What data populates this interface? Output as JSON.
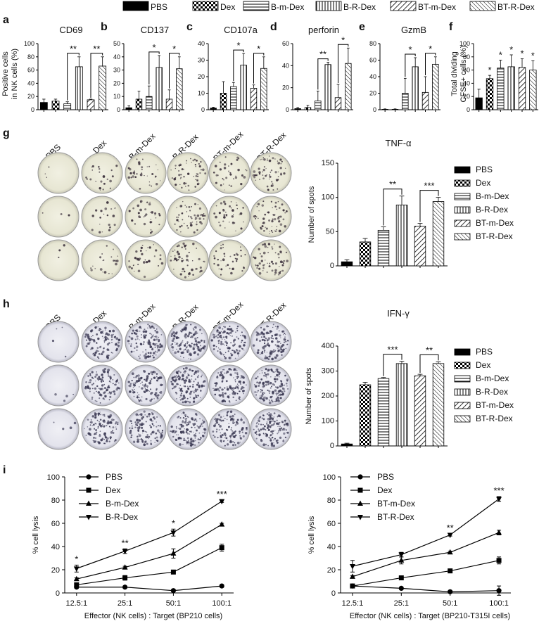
{
  "legend_top": [
    "PBS",
    "Dex",
    "B-m-Dex",
    "B-R-Dex",
    "BT-m-Dex",
    "BT-R-Dex"
  ],
  "panels": {
    "a": {
      "letter": "a",
      "title": "CD69"
    },
    "b": {
      "letter": "b",
      "title": "CD137"
    },
    "c": {
      "letter": "c",
      "title": "CD107a"
    },
    "d": {
      "letter": "d",
      "title": "perforin"
    },
    "e": {
      "letter": "e",
      "title": "GzmB"
    },
    "f": {
      "letter": "f",
      "title": ""
    },
    "g": {
      "letter": "g",
      "title": "TNF-α"
    },
    "h": {
      "letter": "h",
      "title": "IFN-γ"
    },
    "i": {
      "letter": "i"
    }
  },
  "shared_ylabel_ae": [
    "Positive cells",
    "in NK cells (%)"
  ],
  "ylabel_f": [
    "Total dividing",
    "CFSE+ cells (%)"
  ],
  "well_labels": [
    "PBS",
    "Dex",
    "B-m-Dex",
    "B-R-Dex",
    "BT-m-Dex",
    "BT-R-Dex"
  ],
  "colors": {
    "bar_stroke": "#000000",
    "plate_g": "#ecebd9",
    "plate_h": "#ececf2"
  },
  "chart_data": [
    {
      "id": "a",
      "type": "bar",
      "title": "CD69",
      "ylabel": "Positive cells in NK cells (%)",
      "ylim": [
        0,
        100
      ],
      "yticks": [
        0,
        20,
        40,
        60,
        80,
        100
      ],
      "categories": [
        "PBS",
        "Dex",
        "B-m-Dex",
        "B-R-Dex",
        "BT-m-Dex",
        "BT-R-Dex"
      ],
      "values": [
        11,
        13,
        9,
        65,
        15,
        66
      ],
      "errors": [
        5,
        3,
        3,
        15,
        1,
        14
      ],
      "brackets": [
        {
          "from": 2,
          "to": 3,
          "label": "**"
        },
        {
          "from": 4,
          "to": 5,
          "label": "**"
        }
      ]
    },
    {
      "id": "b",
      "type": "bar",
      "title": "CD137",
      "ylabel": "",
      "ylim": [
        0,
        50
      ],
      "yticks": [
        0,
        10,
        20,
        30,
        40,
        50
      ],
      "categories": [
        "PBS",
        "Dex",
        "B-m-Dex",
        "B-R-Dex",
        "BT-m-Dex",
        "BT-R-Dex"
      ],
      "values": [
        1.5,
        8,
        10,
        32,
        8,
        31
      ],
      "errors": [
        1.5,
        6,
        8,
        9,
        7,
        9
      ],
      "brackets": [
        {
          "from": 2,
          "to": 3,
          "label": "*"
        },
        {
          "from": 4,
          "to": 5,
          "label": "*"
        }
      ]
    },
    {
      "id": "c",
      "type": "bar",
      "title": "CD107a",
      "ylabel": "",
      "ylim": [
        0,
        40
      ],
      "yticks": [
        0,
        10,
        20,
        30,
        40
      ],
      "categories": [
        "PBS",
        "Dex",
        "B-m-Dex",
        "B-R-Dex",
        "BT-m-Dex",
        "BT-R-Dex"
      ],
      "values": [
        1,
        10,
        14,
        27,
        13,
        25
      ],
      "errors": [
        0.5,
        7,
        2.5,
        7,
        2,
        7
      ],
      "brackets": [
        {
          "from": 2,
          "to": 3,
          "label": "*"
        },
        {
          "from": 4,
          "to": 5,
          "label": "*"
        }
      ]
    },
    {
      "id": "d",
      "type": "bar",
      "title": "perforin",
      "ylabel": "",
      "ylim": [
        0,
        60
      ],
      "yticks": [
        0,
        20,
        40,
        60
      ],
      "categories": [
        "PBS",
        "Dex",
        "B-m-Dex",
        "B-R-Dex",
        "BT-m-Dex",
        "BT-R-Dex"
      ],
      "values": [
        1,
        2,
        8,
        41,
        11,
        42
      ],
      "errors": [
        1,
        2,
        9,
        2,
        12,
        14
      ],
      "brackets": [
        {
          "from": 2,
          "to": 3,
          "label": "**"
        },
        {
          "from": 4,
          "to": 5,
          "label": "*"
        }
      ]
    },
    {
      "id": "e",
      "type": "bar",
      "title": "GzmB",
      "ylabel": "",
      "ylim": [
        0,
        80
      ],
      "yticks": [
        0,
        20,
        40,
        60,
        80
      ],
      "categories": [
        "PBS",
        "Dex",
        "B-m-Dex",
        "B-R-Dex",
        "BT-m-Dex",
        "BT-R-Dex"
      ],
      "values": [
        0.5,
        0.5,
        20,
        52,
        21,
        55
      ],
      "errors": [
        0.5,
        0.5,
        18,
        11,
        19,
        9
      ],
      "brackets": [
        {
          "from": 2,
          "to": 3,
          "label": "*"
        },
        {
          "from": 4,
          "to": 5,
          "label": "*"
        }
      ]
    },
    {
      "id": "f",
      "type": "bar",
      "title": "",
      "ylabel": "Total dividing CFSE+ cells (%)",
      "ylim": [
        0,
        100
      ],
      "yticks": [
        0,
        20,
        40,
        60,
        80,
        100
      ],
      "categories": [
        "PBS",
        "Dex",
        "B-m-Dex",
        "B-R-Dex",
        "BT-m-Dex",
        "BT-R-Dex"
      ],
      "values": [
        18,
        47,
        63,
        65,
        64,
        60
      ],
      "errors": [
        13,
        5,
        12,
        18,
        13,
        14
      ],
      "stars": [
        "",
        "*",
        "*",
        "*",
        "*",
        "*"
      ]
    },
    {
      "id": "g",
      "type": "bar",
      "title": "TNF-α",
      "ylabel": "Number of spots",
      "ylim": [
        0,
        150
      ],
      "yticks": [
        0,
        50,
        100,
        150
      ],
      "categories": [
        "PBS",
        "Dex",
        "B-m-Dex",
        "B-R-Dex",
        "BT-m-Dex",
        "BT-R-Dex"
      ],
      "values": [
        6,
        35,
        52,
        89,
        58,
        94
      ],
      "errors": [
        3,
        5,
        5,
        13,
        4,
        6
      ],
      "brackets": [
        {
          "from": 2,
          "to": 3,
          "label": "**"
        },
        {
          "from": 4,
          "to": 5,
          "label": "***"
        }
      ]
    },
    {
      "id": "h",
      "type": "bar",
      "title": "IFN-γ",
      "ylabel": "Number of spots",
      "ylim": [
        0,
        400
      ],
      "yticks": [
        0,
        100,
        200,
        300,
        400
      ],
      "categories": [
        "PBS",
        "Dex",
        "B-m-Dex",
        "B-R-Dex",
        "BT-m-Dex",
        "BT-R-Dex"
      ],
      "values": [
        8,
        245,
        270,
        330,
        281,
        330
      ],
      "errors": [
        3,
        10,
        4,
        9,
        6,
        7
      ],
      "brackets": [
        {
          "from": 2,
          "to": 3,
          "label": "***"
        },
        {
          "from": 4,
          "to": 5,
          "label": "**"
        }
      ]
    },
    {
      "id": "i1",
      "type": "line",
      "ylabel": "% cell lysis",
      "xlabel": "Effector (NK cells) : Target (BP210 cells)",
      "ylim": [
        0,
        100
      ],
      "yticks": [
        0,
        20,
        40,
        60,
        80,
        100
      ],
      "x": [
        "12.5:1",
        "25:1",
        "50:1",
        "100:1"
      ],
      "series": [
        {
          "name": "PBS",
          "marker": "circle",
          "values": [
            5,
            5,
            2,
            6
          ],
          "errors": [
            1,
            1,
            1,
            1
          ]
        },
        {
          "name": "Dex",
          "marker": "square",
          "values": [
            7,
            13,
            18,
            39
          ],
          "errors": [
            1,
            2,
            1,
            3
          ]
        },
        {
          "name": "B-m-Dex",
          "marker": "triangle-up",
          "values": [
            12,
            22,
            34,
            59
          ],
          "errors": [
            1,
            1,
            4,
            1
          ]
        },
        {
          "name": "B-R-Dex",
          "marker": "triangle-down",
          "values": [
            21,
            36,
            52,
            79
          ],
          "errors": [
            3,
            2,
            3,
            1
          ]
        }
      ],
      "stars": [
        "*",
        "**",
        "*",
        "***"
      ]
    },
    {
      "id": "i2",
      "type": "line",
      "ylabel": "% cell lysis",
      "xlabel": "Effector (NK cells) : Target (BP210-T315I cells)",
      "ylim": [
        0,
        100
      ],
      "yticks": [
        0,
        20,
        40,
        60,
        80,
        100
      ],
      "x": [
        "12.5:1",
        "25:1",
        "50:1",
        "100:1"
      ],
      "series": [
        {
          "name": "PBS",
          "marker": "circle",
          "values": [
            6,
            4,
            1,
            2
          ],
          "errors": [
            1,
            1,
            1,
            4
          ]
        },
        {
          "name": "Dex",
          "marker": "square",
          "values": [
            6,
            13,
            19,
            28
          ],
          "errors": [
            1,
            1,
            1,
            3
          ]
        },
        {
          "name": "BT-m-Dex",
          "marker": "triangle-up",
          "values": [
            14,
            28,
            35,
            52
          ],
          "errors": [
            1,
            3,
            1,
            2
          ]
        },
        {
          "name": "BT-R-Dex",
          "marker": "triangle-down",
          "values": [
            23,
            33,
            50,
            81
          ],
          "errors": [
            5,
            2,
            1,
            2
          ]
        }
      ],
      "stars": [
        "",
        "",
        "**",
        "***"
      ]
    }
  ]
}
